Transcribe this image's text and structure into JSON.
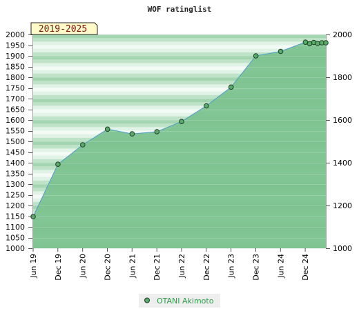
{
  "chart_data": {
    "type": "area",
    "title": "WOF ratinglist",
    "badge": "2019-2025",
    "xlabels": [
      "Jun 19",
      "Dec 19",
      "Jun 20",
      "Dec 20",
      "Jun 21",
      "Dec 21",
      "Jun 22",
      "Dec 22",
      "Jun 23",
      "Dec 23",
      "Jun 24",
      "Dec 24"
    ],
    "ylim": [
      1000,
      2000
    ],
    "left_ticks": [
      1000,
      1050,
      1100,
      1150,
      1200,
      1250,
      1300,
      1350,
      1400,
      1450,
      1500,
      1550,
      1600,
      1650,
      1700,
      1750,
      1800,
      1850,
      1900,
      1950,
      2000
    ],
    "right_ticks": [
      1000,
      1200,
      1400,
      1600,
      1800,
      2000
    ],
    "series": [
      {
        "name": "OTANI Akimoto",
        "x": [
          "2019-06",
          "2019-12",
          "2020-06",
          "2020-12",
          "2021-06",
          "2021-12",
          "2022-06",
          "2022-12",
          "2023-06",
          "2023-12",
          "2024-06",
          "2024-12",
          "2025-01",
          "2025-02",
          "2025-03",
          "2025-04",
          "2025-05"
        ],
        "values": [
          1148,
          1393,
          1484,
          1557,
          1535,
          1545,
          1593,
          1666,
          1754,
          1900,
          1921,
          1964,
          1957,
          1963,
          1958,
          1961,
          1961
        ]
      }
    ],
    "colors": {
      "fill": "#7cc28f",
      "line": "#4a9fc8",
      "marker": "#5aab6a",
      "badge_bg": "#fffbc8",
      "legend_text": "#2e9a4a"
    },
    "legend_position": "bottom-center",
    "grid": true
  }
}
